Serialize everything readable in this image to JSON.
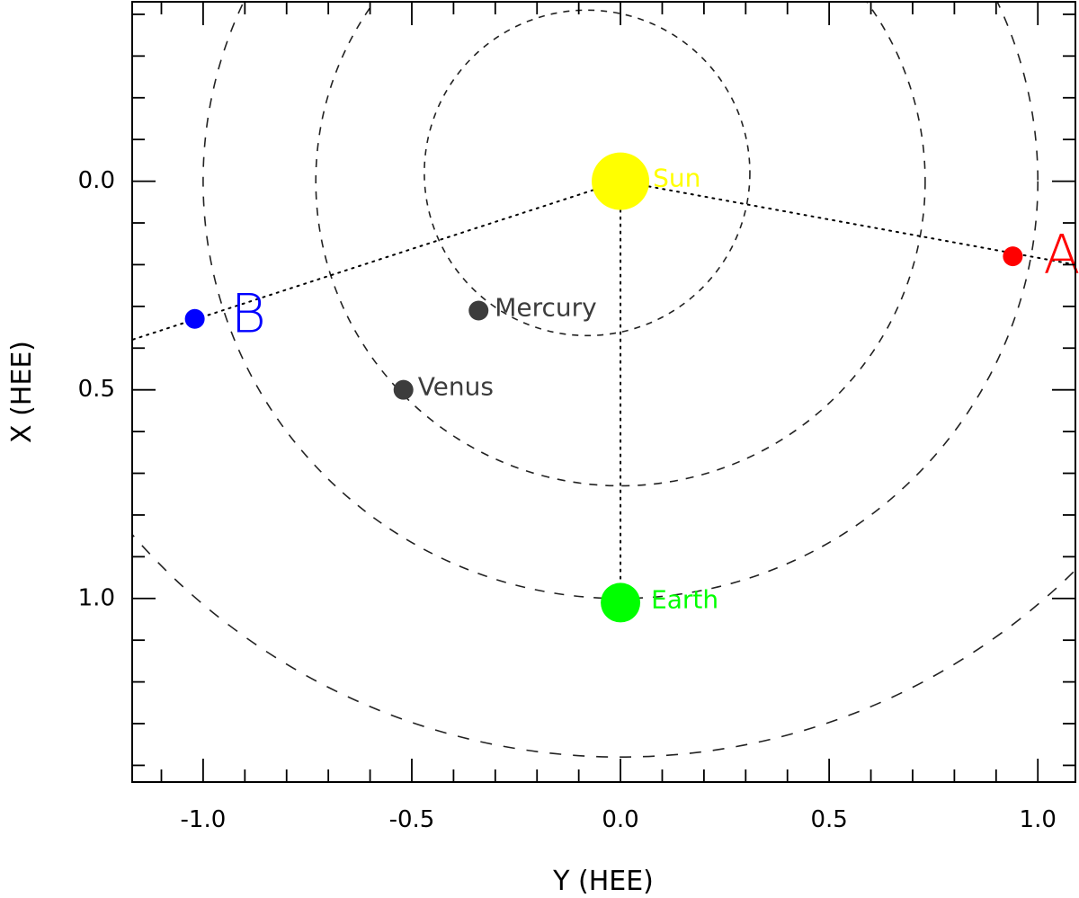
{
  "chart_data": {
    "type": "scatter",
    "xlabel": "Y (HEE)",
    "ylabel": "X (HEE)",
    "xlim": [
      -1.17,
      1.09
    ],
    "ylim": [
      1.44,
      -0.43
    ],
    "x_ticks": [
      -1.0,
      -0.5,
      0.0,
      0.5,
      1.0
    ],
    "x_tick_labels": [
      "-1.0",
      "-0.5",
      "0.0",
      "0.5",
      "1.0"
    ],
    "y_ticks": [
      0.0,
      0.5,
      1.0
    ],
    "y_tick_labels": [
      "0.0",
      "0.5",
      "1.0"
    ],
    "grid": false,
    "bodies": [
      {
        "name": "Sun",
        "label": "Sun",
        "x": 0.0,
        "y": 0.0,
        "color": "#ffff00",
        "label_color": "#ffff00"
      },
      {
        "name": "Mercury",
        "label": "Mercury",
        "x": -0.34,
        "y": 0.31,
        "color": "#3c3c3c",
        "label_color": "#3c3c3c"
      },
      {
        "name": "Venus",
        "label": "Venus",
        "x": -0.52,
        "y": 0.5,
        "color": "#3c3c3c",
        "label_color": "#3c3c3c"
      },
      {
        "name": "Earth",
        "label": "Earth",
        "x": 0.0,
        "y": 1.01,
        "color": "#00ff00",
        "label_color": "#00ff00"
      },
      {
        "name": "A",
        "label": "A",
        "x": 0.94,
        "y": 0.18,
        "color": "#ff0000",
        "label_color": "#ff0000"
      },
      {
        "name": "B",
        "label": "B",
        "x": -1.02,
        "y": 0.33,
        "color": "#0000ff",
        "label_color": "#0000ff"
      }
    ],
    "orbits": [
      {
        "name": "Mercury orbit",
        "center_x": -0.08,
        "center_y": -0.02,
        "radius": 0.39
      },
      {
        "name": "Venus orbit",
        "center_x": 0.0,
        "center_y": 0.0,
        "radius": 0.73
      },
      {
        "name": "Earth orbit",
        "center_x": 0.0,
        "center_y": 0.0,
        "radius": 1.0
      },
      {
        "name": "outer orbit",
        "center_x": 0.0,
        "center_y": -0.17,
        "radius": 1.55
      }
    ],
    "lines": [
      {
        "name": "Sun-Earth line",
        "from": [
          0.0,
          0.0
        ],
        "to": [
          0.0,
          1.01
        ]
      },
      {
        "name": "Sun-A line",
        "from": [
          0.0,
          0.0
        ],
        "to": [
          1.09,
          0.2
        ]
      },
      {
        "name": "Sun-B line",
        "from": [
          0.0,
          0.0
        ],
        "to": [
          -1.17,
          0.38
        ]
      }
    ]
  }
}
